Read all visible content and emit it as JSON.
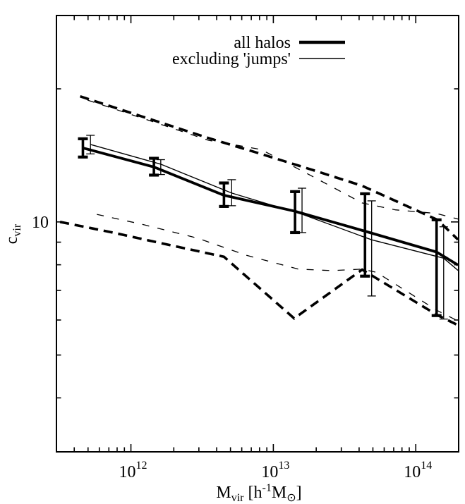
{
  "figure": {
    "background": "#ffffff",
    "ink": "#000000"
  },
  "legend": {
    "entries": [
      {
        "label": "all halos",
        "style": "thick-solid"
      },
      {
        "label": "excluding 'jumps'",
        "style": "thin-solid"
      }
    ]
  },
  "chart_data": {
    "type": "line",
    "title": "",
    "xlabel_parts": [
      {
        "t": "M",
        "script": "none"
      },
      {
        "t": "vir",
        "script": "sub"
      },
      {
        "t": " [h",
        "script": "none"
      },
      {
        "t": "-1",
        "script": "sup"
      },
      {
        "t": "M",
        "script": "none"
      },
      {
        "t": "⊙",
        "script": "sub"
      },
      {
        "t": "]",
        "script": "none"
      }
    ],
    "ylabel_parts": [
      {
        "t": "c",
        "script": "none"
      },
      {
        "t": "vir",
        "script": "sub"
      }
    ],
    "x_axis": {
      "scale": "log",
      "range": [
        300000000000.0,
        200000000000000.0
      ],
      "major_ticks": [
        {
          "value": 1000000000000.0,
          "label_base": "10",
          "label_exp": "12"
        },
        {
          "value": 10000000000000.0,
          "label_base": "10",
          "label_exp": "13"
        },
        {
          "value": 100000000000000.0,
          "label_base": "10",
          "label_exp": "14"
        }
      ],
      "minor_ticks": [
        400000000000.0,
        500000000000.0,
        600000000000.0,
        700000000000.0,
        800000000000.0,
        900000000000.0,
        2000000000000.0,
        3000000000000.0,
        4000000000000.0,
        5000000000000.0,
        6000000000000.0,
        7000000000000.0,
        8000000000000.0,
        9000000000000.0,
        20000000000000.0,
        30000000000000.0,
        40000000000000.0,
        50000000000000.0,
        60000000000000.0,
        70000000000000.0,
        80000000000000.0,
        90000000000000.0
      ]
    },
    "y_axis": {
      "scale": "log",
      "range": [
        3.02,
        29.3
      ],
      "major_ticks": [
        {
          "value": 10,
          "label": "10"
        }
      ],
      "minor_ticks": [
        4,
        5,
        6,
        7,
        8,
        9,
        20
      ]
    },
    "series": [
      {
        "name": "all halos median",
        "style": "thick-solid",
        "points": [
          [
            460000000000.0,
            14.7
          ],
          [
            1450000000000.0,
            13.31
          ],
          [
            4500000000000.0,
            11.49
          ],
          [
            14200000000000.0,
            10.57
          ],
          [
            44000000000000.0,
            9.53
          ],
          [
            140000000000000.0,
            8.55
          ],
          [
            198000000000000.0,
            7.99
          ]
        ]
      },
      {
        "name": "excluding jumps median",
        "style": "thin-solid",
        "points": [
          [
            520000000000.0,
            14.97
          ],
          [
            1620000000000.0,
            13.51
          ],
          [
            5100000000000.0,
            11.62
          ],
          [
            15900000000000.0,
            10.41
          ],
          [
            49000000000000.0,
            9.11
          ],
          [
            157000000000000.0,
            8.28
          ],
          [
            198000000000000.0,
            7.77
          ]
        ]
      },
      {
        "name": "all halos upper scatter",
        "style": "thick-dashed",
        "points": [
          [
            440000000000.0,
            19.23
          ],
          [
            1180000000000.0,
            17.34
          ],
          [
            3500000000000.0,
            15.48
          ],
          [
            8200000000000.0,
            14.25
          ],
          [
            20500000000000.0,
            13.0
          ],
          [
            42000000000000.0,
            12.07
          ],
          [
            142000000000000.0,
            10.11
          ],
          [
            198000000000000.0,
            9.12
          ]
        ]
      },
      {
        "name": "all halos lower scatter",
        "style": "thick-dashed",
        "points": [
          [
            318000000000.0,
            10.0
          ],
          [
            750000000000.0,
            9.46
          ],
          [
            1530000000000.0,
            8.99
          ],
          [
            4500000000000.0,
            8.34
          ],
          [
            14000000000000.0,
            6.05
          ],
          [
            42000000000000.0,
            7.8
          ],
          [
            140000000000000.0,
            6.17
          ],
          [
            198000000000000.0,
            5.84
          ]
        ]
      },
      {
        "name": "excluding jumps upper scatter",
        "style": "thin-dashed",
        "points": [
          [
            440000000000.0,
            19.1
          ],
          [
            1180000000000.0,
            17.2
          ],
          [
            3500000000000.0,
            15.3
          ],
          [
            8200000000000.0,
            14.58
          ],
          [
            18200000000000.0,
            12.75
          ],
          [
            42000000000000.0,
            11.04
          ],
          [
            72000000000000.0,
            10.65
          ],
          [
            139000000000000.0,
            10.45
          ],
          [
            198000000000000.0,
            10.15
          ]
        ]
      },
      {
        "name": "excluding jumps lower scatter",
        "style": "thin-dashed",
        "points": [
          [
            510000000000.0,
            10.49
          ],
          [
            1180000000000.0,
            9.89
          ],
          [
            2930000000000.0,
            9.19
          ],
          [
            6500000000000.0,
            8.4
          ],
          [
            15000000000000.0,
            7.82
          ],
          [
            25700000000000.0,
            7.76
          ],
          [
            42000000000000.0,
            7.82
          ],
          [
            53000000000000.0,
            7.69
          ],
          [
            142000000000000.0,
            6.3
          ],
          [
            198000000000000.0,
            5.97
          ]
        ]
      }
    ],
    "error_bars": [
      {
        "name": "all halos",
        "style": "thick",
        "points": [
          {
            "m": 460000000000.0,
            "lo": 14.02,
            "hi": 15.42
          },
          {
            "m": 1450000000000.0,
            "lo": 12.76,
            "hi": 13.93
          },
          {
            "m": 4500000000000.0,
            "lo": 10.84,
            "hi": 12.25
          },
          {
            "m": 14200000000000.0,
            "lo": 9.46,
            "hi": 11.71
          },
          {
            "m": 44000000000000.0,
            "lo": 7.54,
            "hi": 11.58
          },
          {
            "m": 140000000000000.0,
            "lo": 6.14,
            "hi": 10.11
          }
        ]
      },
      {
        "name": "excluding jumps",
        "style": "thin",
        "points": [
          {
            "m": 520000000000.0,
            "lo": 14.25,
            "hi": 15.7
          },
          {
            "m": 1620000000000.0,
            "lo": 12.8,
            "hi": 13.83
          },
          {
            "m": 5100000000000.0,
            "lo": 10.88,
            "hi": 12.46
          },
          {
            "m": 15900000000000.0,
            "lo": 9.46,
            "hi": 11.92
          },
          {
            "m": 49000000000000.0,
            "lo": 6.8,
            "hi": 11.16
          },
          {
            "m": 157000000000000.0,
            "lo": 6.03,
            "hi": 9.75
          }
        ]
      }
    ]
  }
}
